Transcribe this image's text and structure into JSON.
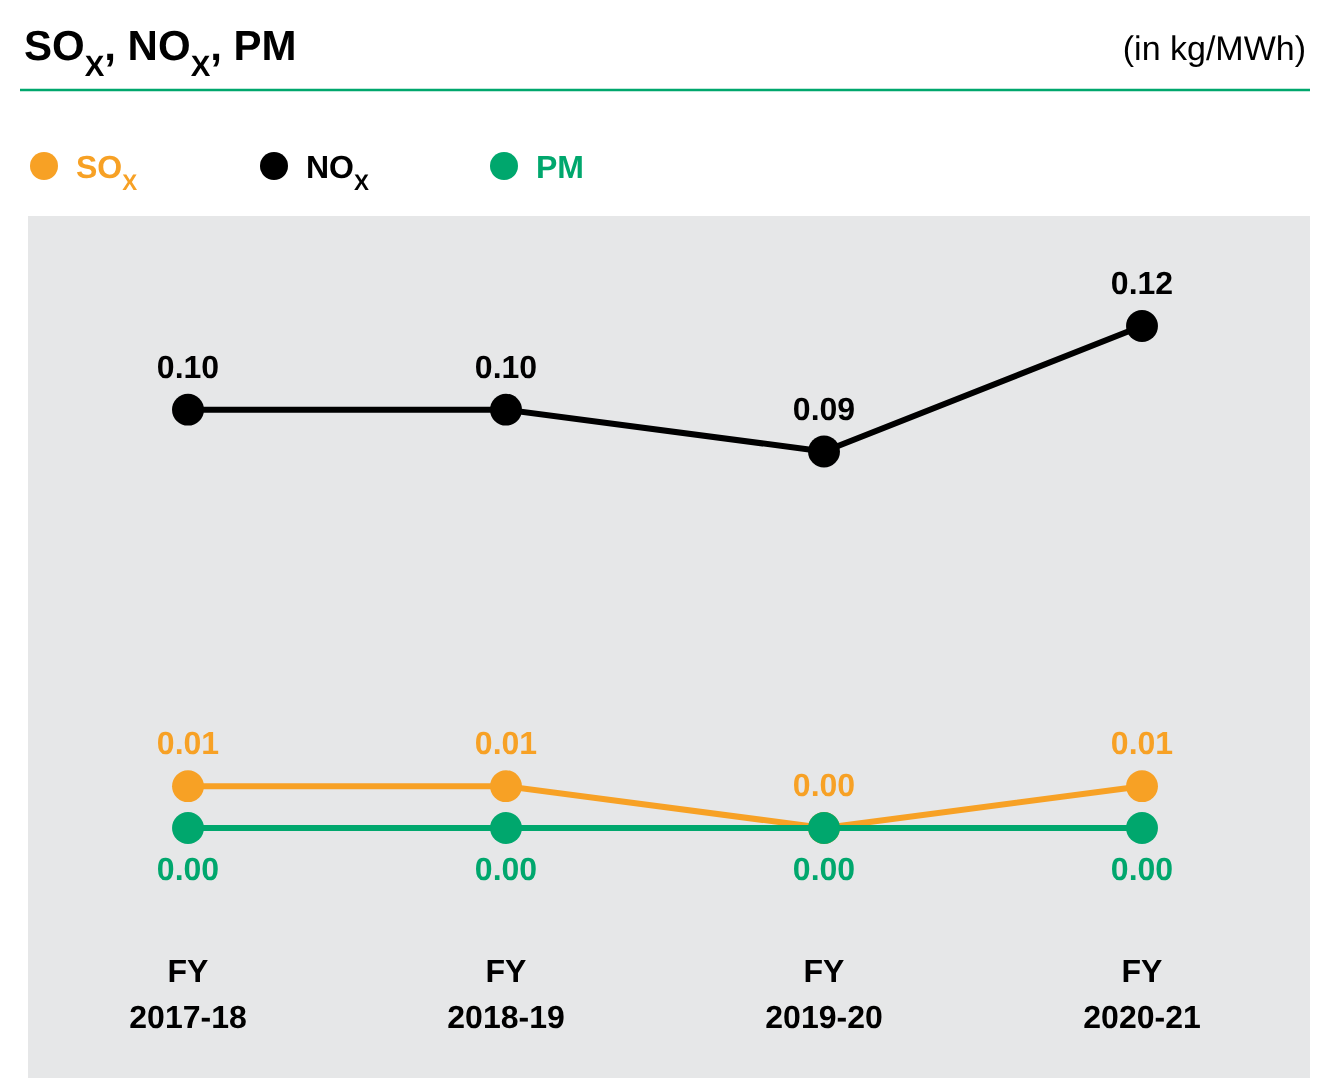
{
  "chart_data": {
    "type": "line",
    "title": "SO$_{X}$, NO$_{X}$, PM",
    "subtitle": "(in kg/MWh)",
    "categories": [
      "FY 2017-18",
      "FY 2018-19",
      "FY 2019-20",
      "FY 2020-21"
    ],
    "series": [
      {
        "name": "SO$_{X}$",
        "color": "#f7a125",
        "values": [
          0.01,
          0.01,
          0.0,
          0.01
        ],
        "value_labels": [
          "0.01",
          "0.01",
          "0.00",
          "0.01"
        ]
      },
      {
        "name": "NO$_{X}$",
        "color": "#000000",
        "values": [
          0.1,
          0.1,
          0.09,
          0.12
        ],
        "value_labels": [
          "0.10",
          "0.10",
          "0.09",
          "0.12"
        ]
      },
      {
        "name": "PM",
        "color": "#00a76d",
        "values": [
          0.0,
          0.0,
          0.0,
          0.0
        ],
        "value_labels": [
          "0.00",
          "0.00",
          "0.00",
          "0.00"
        ]
      }
    ],
    "legend": "top left",
    "marker": "circle",
    "line_style": "solid"
  }
}
